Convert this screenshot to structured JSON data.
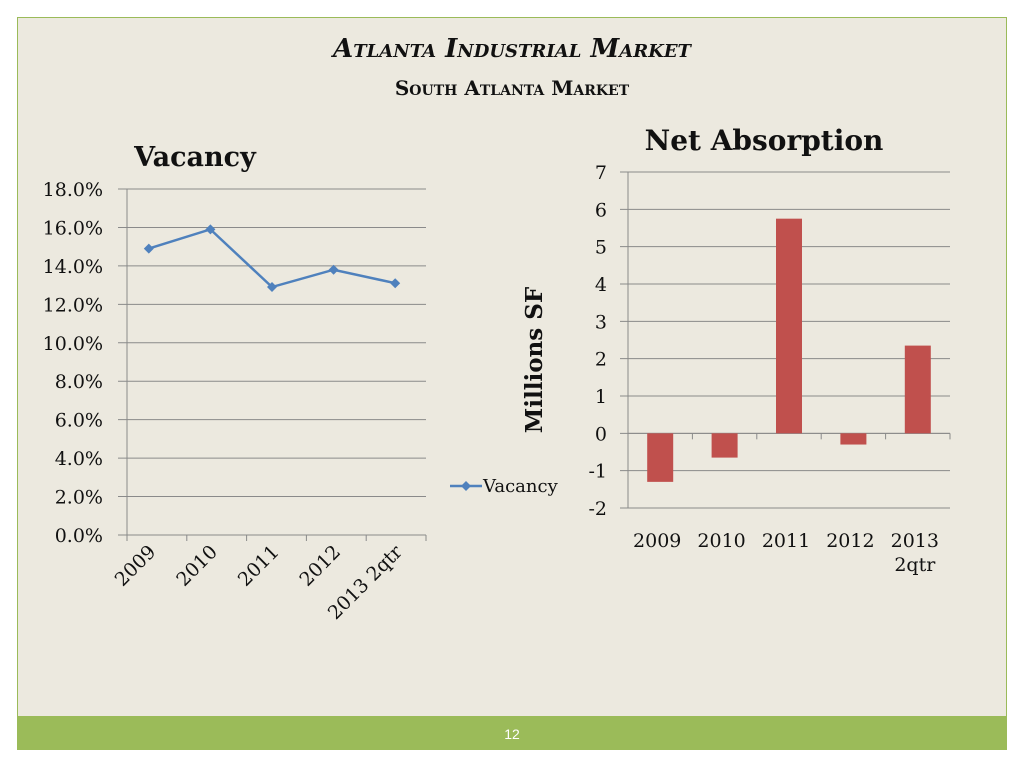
{
  "title": "Atlanta Industrial Market",
  "subtitle": "South Atlanta Market",
  "page_number": "12",
  "colors": {
    "line": "#4f81bd",
    "bar": "#c0504d",
    "footer": "#9bbb59",
    "background": "#ece9df"
  },
  "chart_data": [
    {
      "type": "line",
      "title": "Vacancy",
      "categories": [
        "2009",
        "2010",
        "2011",
        "2012",
        "2013 2qtr"
      ],
      "series": [
        {
          "name": "Vacancy",
          "values": [
            14.9,
            15.9,
            12.9,
            13.8,
            13.1
          ]
        }
      ],
      "ylim": [
        0,
        18
      ],
      "yticks": [
        "0.0%",
        "2.0%",
        "4.0%",
        "6.0%",
        "8.0%",
        "10.0%",
        "12.0%",
        "14.0%",
        "16.0%",
        "18.0%"
      ],
      "legend": "Vacancy",
      "legend_position": "right"
    },
    {
      "type": "bar",
      "title": "Net Absorption",
      "ylabel": "Millions  SF",
      "categories": [
        "2009",
        "2010",
        "2011",
        "2012",
        "2013 2qtr"
      ],
      "series": [
        {
          "name": "Net Absorption",
          "values": [
            -1.3,
            -0.65,
            5.75,
            -0.3,
            2.35
          ]
        }
      ],
      "ylim": [
        -2,
        7
      ],
      "yticks": [
        "-2",
        "-1",
        "0",
        "1",
        "2",
        "3",
        "4",
        "5",
        "6",
        "7"
      ]
    }
  ]
}
